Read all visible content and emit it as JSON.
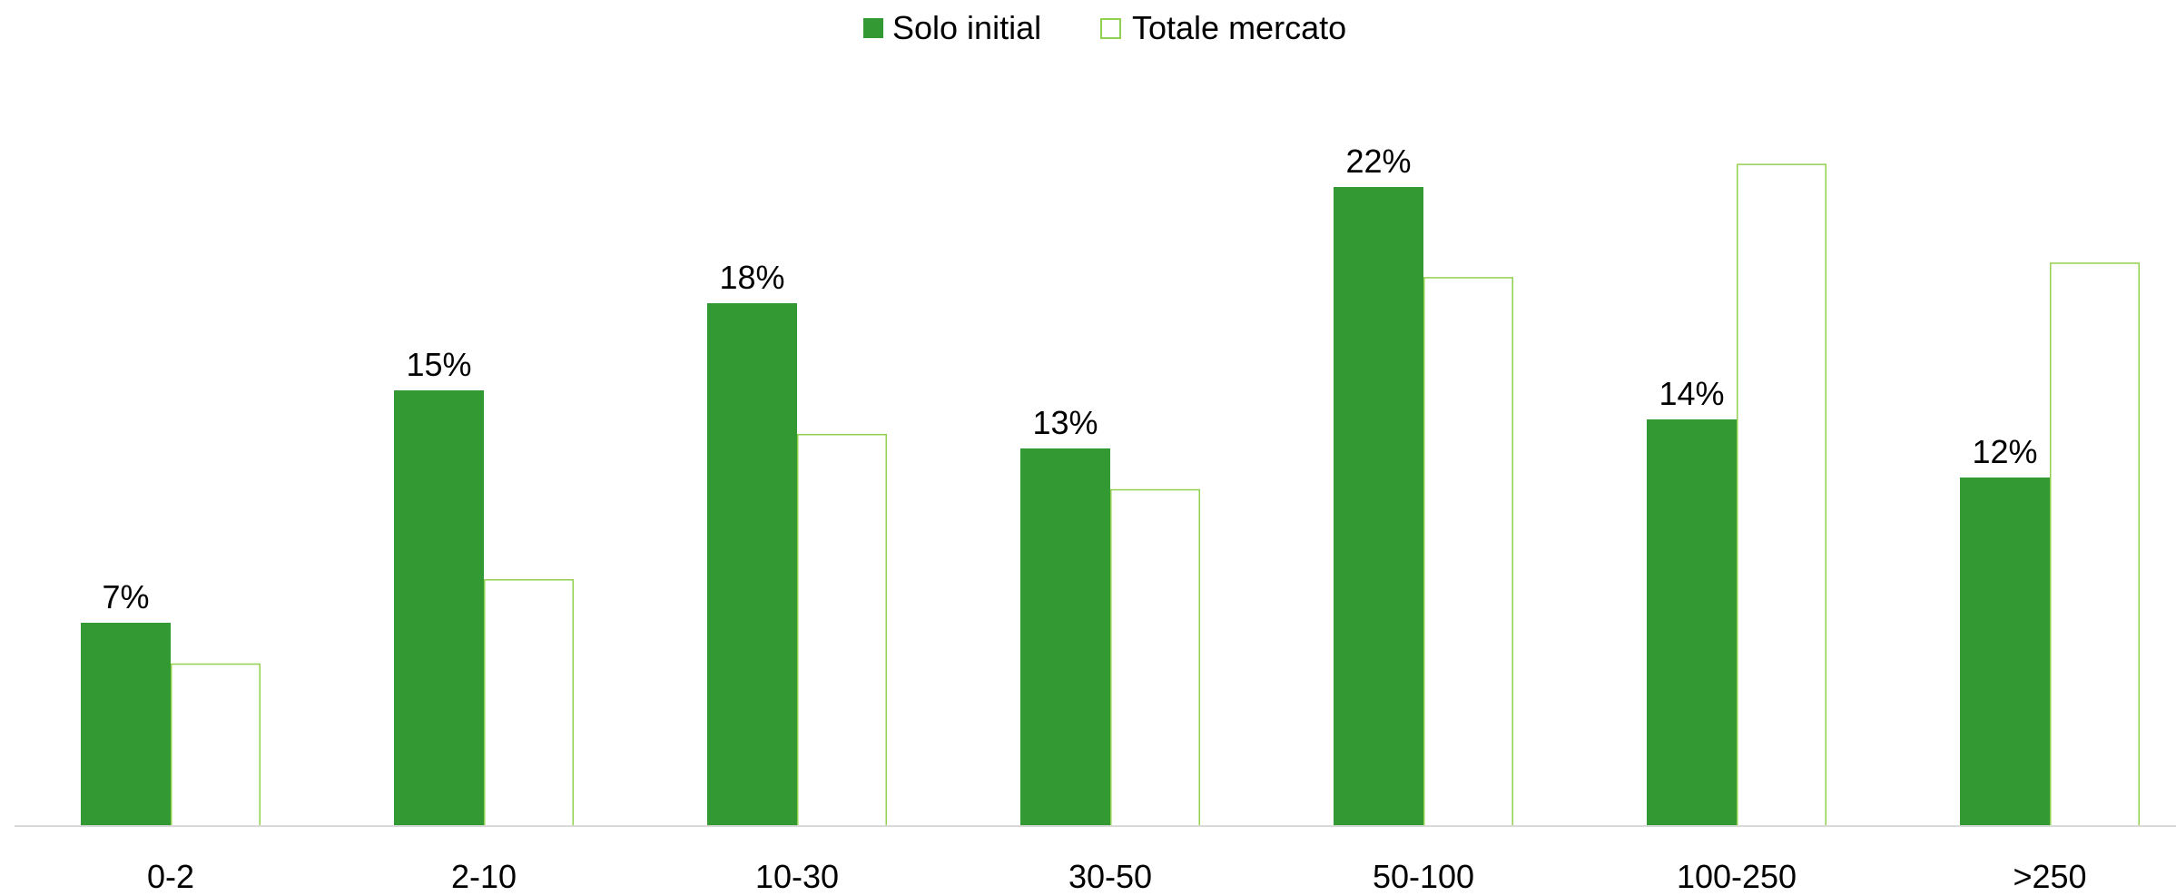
{
  "chart_data": {
    "type": "bar",
    "title": "",
    "xlabel": "",
    "ylabel": "",
    "categories": [
      "0-2",
      "2-10",
      "10-30",
      "30-50",
      "50-100",
      "100-250",
      ">250"
    ],
    "series": [
      {
        "name": "Solo initial",
        "values": [
          7,
          15,
          18,
          13,
          22,
          14,
          12
        ],
        "labels": [
          "7%",
          "15%",
          "18%",
          "13%",
          "22%",
          "14%",
          "12%"
        ],
        "style": "filled",
        "color": "#339933"
      },
      {
        "name": "Totale mercato",
        "values": [
          5.6,
          8.5,
          13.5,
          11.6,
          18.9,
          22.8,
          19.4
        ],
        "labels": null,
        "style": "outline",
        "color": "#92D050"
      }
    ],
    "ylim": [
      0,
      25
    ],
    "grid": false,
    "legend": "top-center",
    "axis_color": "#D9D9D9"
  }
}
